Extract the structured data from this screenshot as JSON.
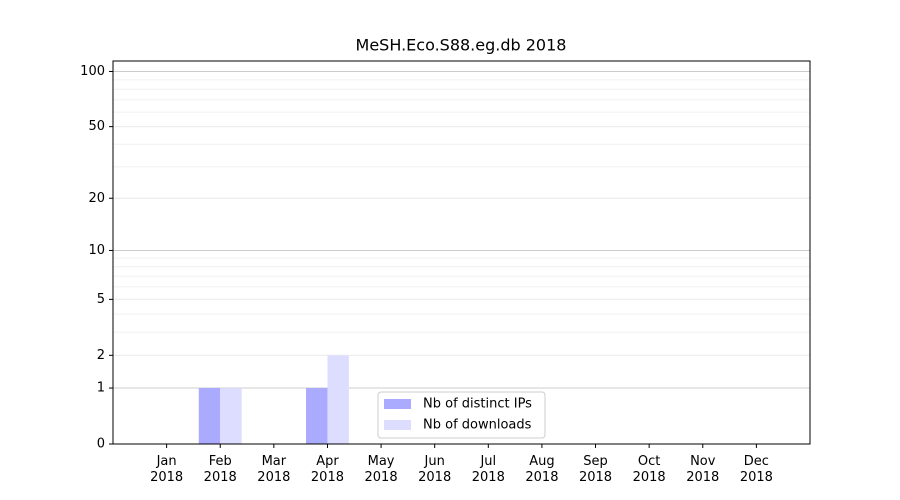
{
  "chart_data": {
    "type": "bar",
    "title": "MeSH.Eco.S88.eg.db 2018",
    "categories": [
      "Jan\n2018",
      "Feb\n2018",
      "Mar\n2018",
      "Apr\n2018",
      "May\n2018",
      "Jun\n2018",
      "Jul\n2018",
      "Aug\n2018",
      "Sep\n2018",
      "Oct\n2018",
      "Nov\n2018",
      "Dec\n2018"
    ],
    "series": [
      {
        "name": "Nb of distinct IPs",
        "color": "#aaaaff",
        "values": [
          0,
          1,
          0,
          1,
          0,
          0,
          0,
          0,
          0,
          0,
          0,
          0
        ]
      },
      {
        "name": "Nb of downloads",
        "color": "#ddddff",
        "values": [
          0,
          1,
          0,
          2,
          0,
          0,
          0,
          0,
          0,
          0,
          0,
          0
        ]
      }
    ],
    "yscale": "log1p",
    "ylim": [
      0,
      114
    ],
    "yticks": [
      0,
      1,
      2,
      5,
      10,
      20,
      50,
      100
    ],
    "grid": true,
    "legend": "lower center"
  }
}
